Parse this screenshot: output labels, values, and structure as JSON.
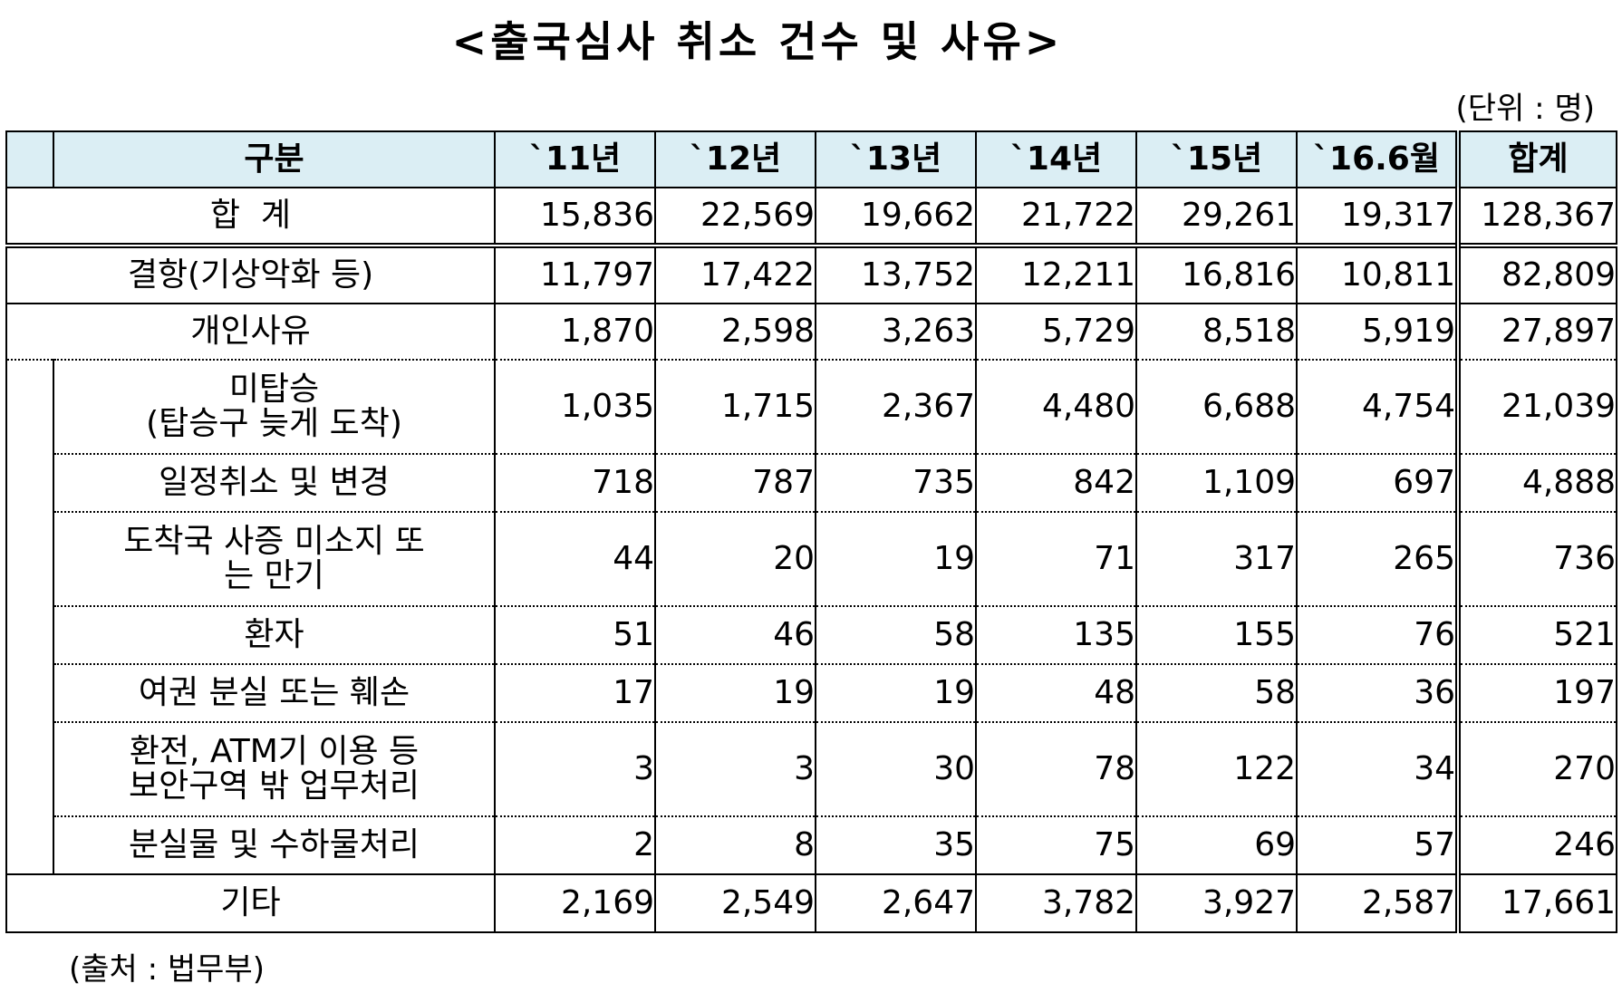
{
  "title": "<출국심사 취소 건수 및 사유>",
  "unit": "(단위 : 명)",
  "source": "(출처 : 법무부)",
  "header": {
    "category": "구분",
    "years": [
      "`11년",
      "`12년",
      "`13년",
      "`14년",
      "`15년",
      "`16.6월"
    ],
    "total": "합계"
  },
  "rows": {
    "sum": {
      "label": "합  계",
      "values": [
        "15,836",
        "22,569",
        "19,662",
        "21,722",
        "29,261",
        "19,317"
      ],
      "total": "128,367"
    },
    "weather": {
      "label": "결항(기상악화 등)",
      "values": [
        "11,797",
        "17,422",
        "13,752",
        "12,211",
        "16,816",
        "10,811"
      ],
      "total": "82,809"
    },
    "personal": {
      "label": "개인사유",
      "values": [
        "1,870",
        "2,598",
        "3,263",
        "5,729",
        "8,518",
        "5,919"
      ],
      "total": "27,897"
    },
    "missed": {
      "label1": "미탑승",
      "label2": "(탑승구 늦게 도착)",
      "values": [
        "1,035",
        "1,715",
        "2,367",
        "4,480",
        "6,688",
        "4,754"
      ],
      "total": "21,039"
    },
    "schedule": {
      "label": "일정취소 및 변경",
      "values": [
        "718",
        "787",
        "735",
        "842",
        "1,109",
        "697"
      ],
      "total": "4,888"
    },
    "visa": {
      "label1": "도착국 사증 미소지 또",
      "label2": "는 만기",
      "values": [
        "44",
        "20",
        "19",
        "71",
        "317",
        "265"
      ],
      "total": "736"
    },
    "patient": {
      "label": "환자",
      "values": [
        "51",
        "46",
        "58",
        "135",
        "155",
        "76"
      ],
      "total": "521"
    },
    "passport": {
      "label": "여권 분실 또는 훼손",
      "values": [
        "17",
        "19",
        "19",
        "48",
        "58",
        "36"
      ],
      "total": "197"
    },
    "atm": {
      "label1": "환전, ATM기 이용 등",
      "label2": "보안구역 밖 업무처리",
      "values": [
        "3",
        "3",
        "30",
        "78",
        "122",
        "34"
      ],
      "total": "270"
    },
    "lost": {
      "label": "분실물 및 수하물처리",
      "values": [
        "2",
        "8",
        "35",
        "75",
        "69",
        "57"
      ],
      "total": "246"
    },
    "other": {
      "label": "기타",
      "values": [
        "2,169",
        "2,549",
        "2,647",
        "3,782",
        "3,927",
        "2,587"
      ],
      "total": "17,661"
    }
  }
}
